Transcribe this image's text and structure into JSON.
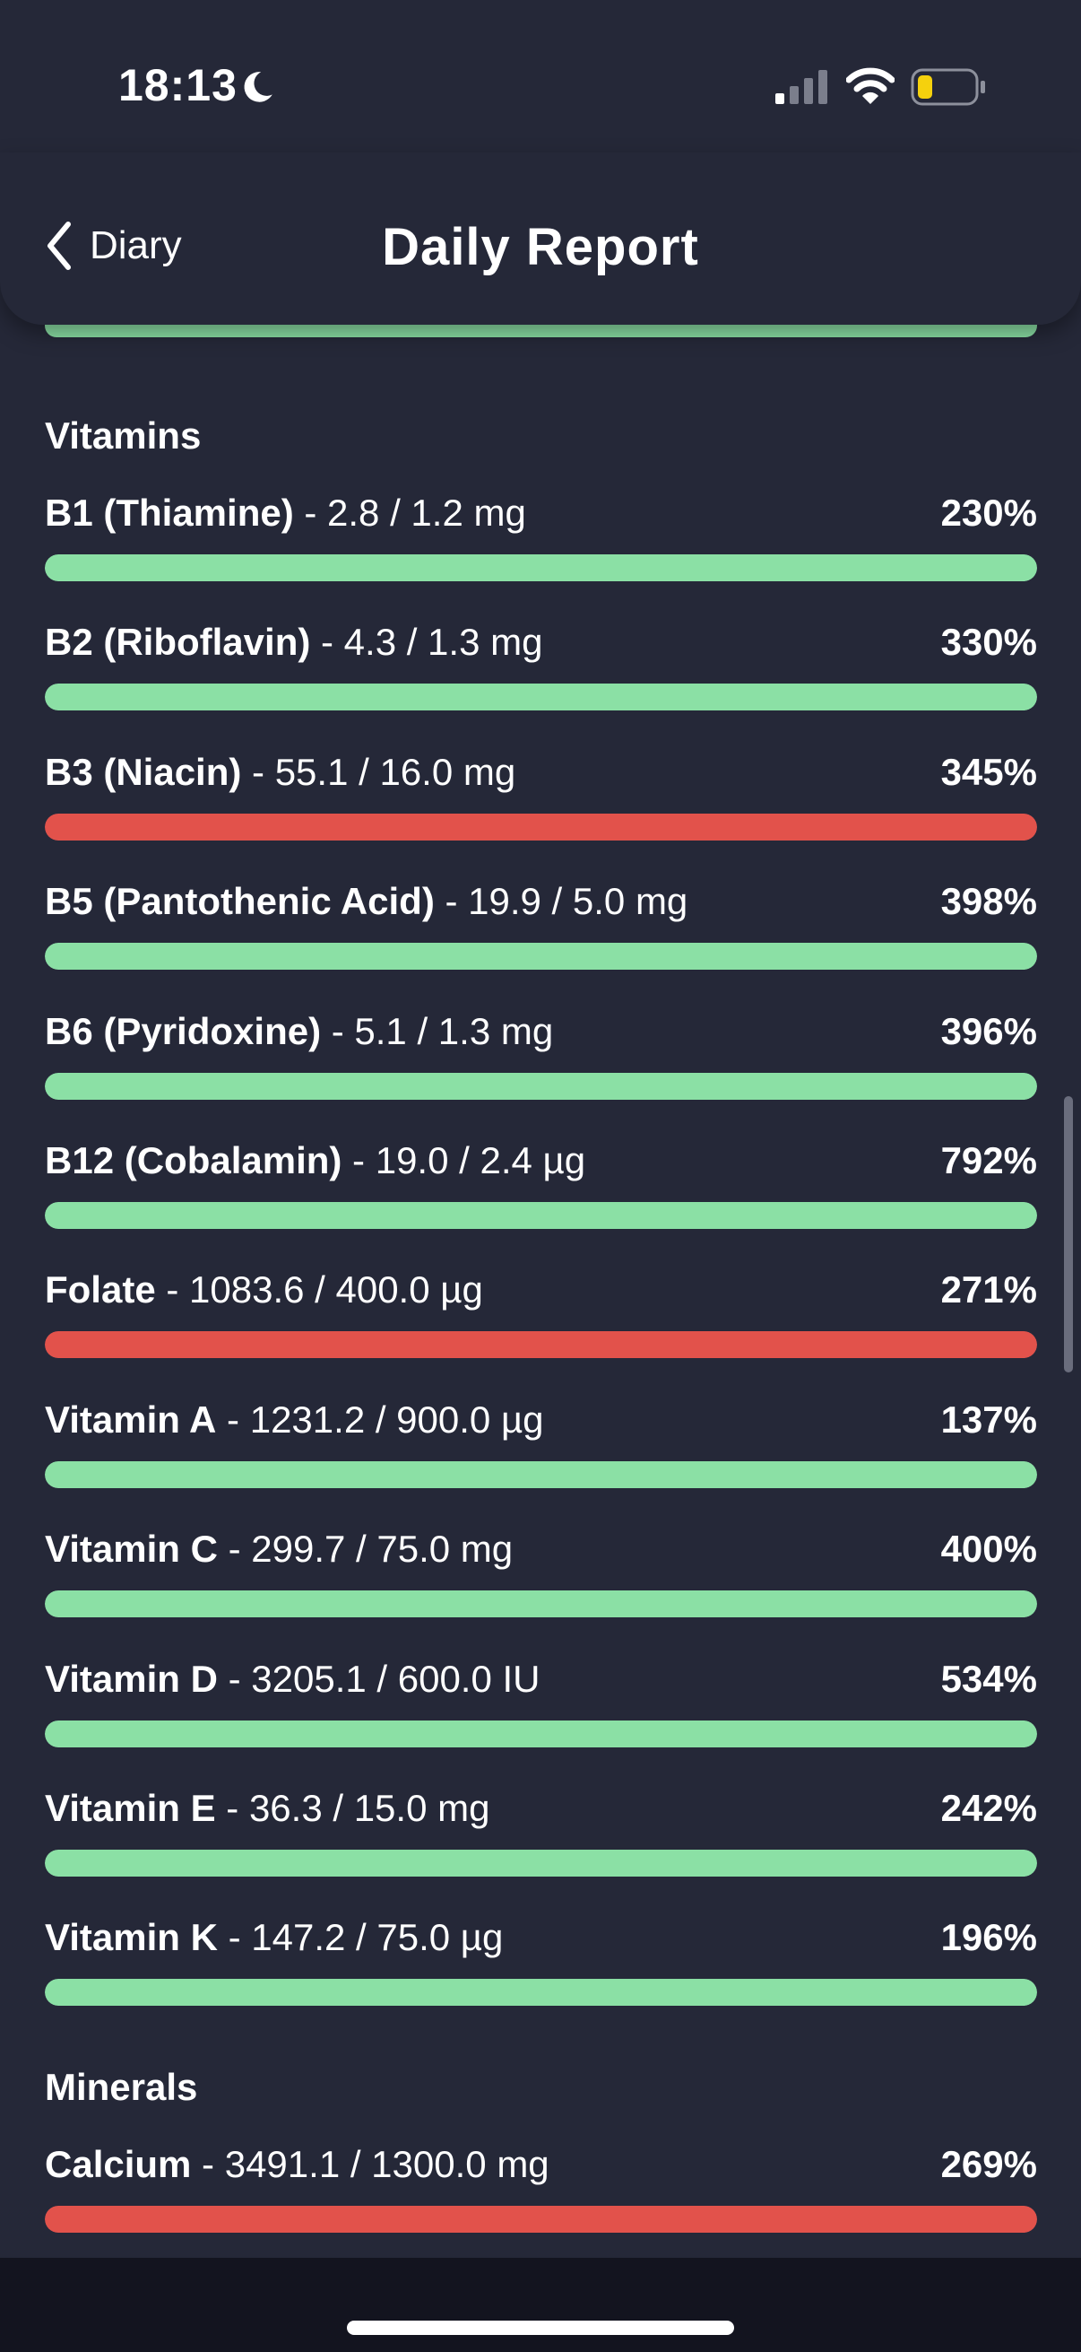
{
  "status_bar": {
    "time": "18:13"
  },
  "header": {
    "back_label": "Diary",
    "title": "Daily Report"
  },
  "colors": {
    "ok": "#8be0a5",
    "over": "#e2524b",
    "background": "#252838"
  },
  "sections": [
    {
      "title": "Vitamins",
      "items": [
        {
          "name": "B1 (Thiamine)",
          "amount": " - 2.8 / 1.2 mg",
          "percent": "230%",
          "status": "ok",
          "fill": 1.0
        },
        {
          "name": "B2 (Riboflavin)",
          "amount": " - 4.3 / 1.3 mg",
          "percent": "330%",
          "status": "ok",
          "fill": 1.0
        },
        {
          "name": "B3 (Niacin)",
          "amount": " - 55.1 / 16.0 mg",
          "percent": "345%",
          "status": "over",
          "fill": 1.0
        },
        {
          "name": "B5 (Pantothenic Acid)",
          "amount": " - 19.9 / 5.0 mg",
          "percent": "398%",
          "status": "ok",
          "fill": 1.0
        },
        {
          "name": "B6 (Pyridoxine)",
          "amount": " - 5.1 / 1.3 mg",
          "percent": "396%",
          "status": "ok",
          "fill": 1.0
        },
        {
          "name": "B12 (Cobalamin)",
          "amount": " - 19.0 / 2.4 µg",
          "percent": "792%",
          "status": "ok",
          "fill": 1.0
        },
        {
          "name": "Folate",
          "amount": " - 1083.6 / 400.0 µg",
          "percent": "271%",
          "status": "over",
          "fill": 1.0
        },
        {
          "name": "Vitamin A",
          "amount": " - 1231.2 / 900.0 µg",
          "percent": "137%",
          "status": "ok",
          "fill": 1.0
        },
        {
          "name": "Vitamin C",
          "amount": " - 299.7 / 75.0 mg",
          "percent": "400%",
          "status": "ok",
          "fill": 1.0
        },
        {
          "name": "Vitamin D",
          "amount": " - 3205.1 / 600.0 IU",
          "percent": "534%",
          "status": "ok",
          "fill": 1.0
        },
        {
          "name": "Vitamin E",
          "amount": " - 36.3 / 15.0 mg",
          "percent": "242%",
          "status": "ok",
          "fill": 1.0
        },
        {
          "name": "Vitamin K",
          "amount": " - 147.2 / 75.0 µg",
          "percent": "196%",
          "status": "ok",
          "fill": 1.0
        }
      ]
    },
    {
      "title": "Minerals",
      "items": [
        {
          "name": "Calcium",
          "amount": " - 3491.1 / 1300.0 mg",
          "percent": "269%",
          "status": "over",
          "fill": 1.0
        }
      ]
    }
  ]
}
